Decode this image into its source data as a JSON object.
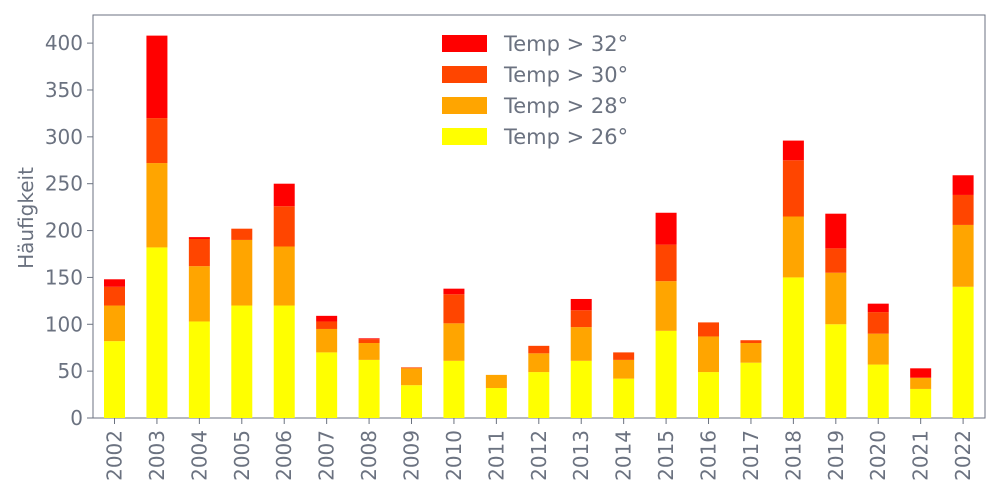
{
  "chart_data": {
    "type": "bar",
    "stacked": true,
    "categories": [
      "2002",
      "2003",
      "2004",
      "2005",
      "2006",
      "2007",
      "2008",
      "2009",
      "2010",
      "2011",
      "2012",
      "2013",
      "2014",
      "2015",
      "2016",
      "2017",
      "2018",
      "2019",
      "2020",
      "2021",
      "2022"
    ],
    "series": [
      {
        "name": "Temp > 26°",
        "color": "#ffff00",
        "values": [
          82,
          182,
          103,
          120,
          120,
          70,
          62,
          35,
          61,
          32,
          49,
          61,
          42,
          93,
          49,
          59,
          150,
          100,
          57,
          31,
          140
        ]
      },
      {
        "name": "Temp > 28°",
        "color": "#ffa500",
        "values": [
          38,
          90,
          59,
          70,
          63,
          25,
          18,
          18,
          40,
          14,
          20,
          36,
          20,
          53,
          38,
          21,
          65,
          55,
          33,
          12,
          66
        ]
      },
      {
        "name": "Temp > 30°",
        "color": "#ff4500",
        "values": [
          20,
          48,
          29,
          12,
          43,
          8,
          4,
          1,
          31,
          0,
          8,
          18,
          8,
          39,
          15,
          3,
          60,
          26,
          23,
          0,
          32
        ]
      },
      {
        "name": "Temp > 32°",
        "color": "#ff0000",
        "values": [
          8,
          88,
          2,
          0,
          24,
          6,
          1,
          0,
          6,
          0,
          0,
          12,
          0,
          34,
          0,
          0,
          21,
          37,
          9,
          10,
          21
        ]
      }
    ],
    "ylabel": "Häufigkeit",
    "xlabel": "",
    "ylim": [
      0,
      430
    ],
    "yticks": [
      0,
      50,
      100,
      150,
      200,
      250,
      300,
      350,
      400
    ],
    "legend_position": "top-center",
    "legend_order": [
      "Temp > 32°",
      "Temp > 30°",
      "Temp > 28°",
      "Temp > 26°"
    ],
    "grid": false
  }
}
